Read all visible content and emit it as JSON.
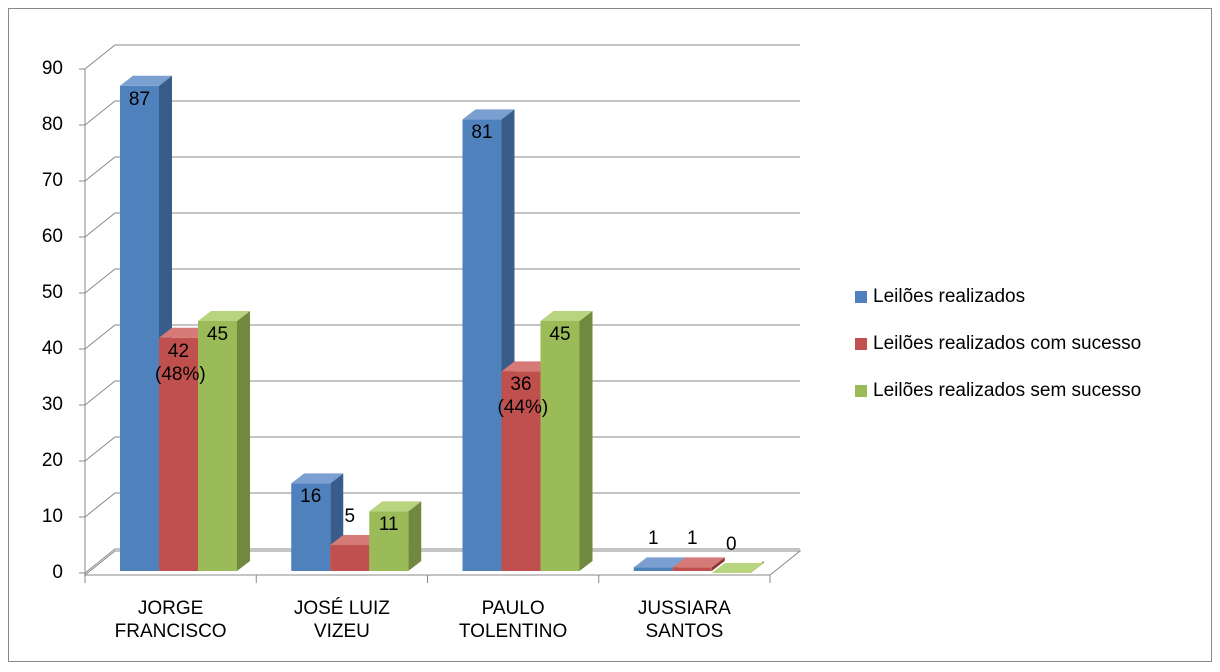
{
  "chart_data": {
    "type": "bar3d",
    "categories": [
      "JORGE FRANCISCO",
      "JOSÉ LUIZ VIZEU",
      "PAULO TOLENTINO",
      "JUSSIARA SANTOS"
    ],
    "series": [
      {
        "name": "Leilões realizados",
        "color": "#4f81bd",
        "side": "#385d8a",
        "top": "#7a9fd0",
        "values": [
          87,
          16,
          81,
          1
        ]
      },
      {
        "name": "Leilões realizados com sucesso",
        "color": "#c0504d",
        "side": "#8c3836",
        "top": "#d67a77",
        "values": [
          42,
          5,
          36,
          1
        ],
        "value_labels": [
          "42 (48%)",
          "5",
          "36 (44%)",
          "1"
        ]
      },
      {
        "name": "Leilões realizados sem sucesso",
        "color": "#9bbb59",
        "side": "#71893f",
        "top": "#b8d47f",
        "values": [
          45,
          11,
          45,
          0
        ]
      }
    ],
    "ylim": [
      0,
      90
    ],
    "yticks": [
      0,
      10,
      20,
      30,
      40,
      50,
      60,
      70,
      80,
      90
    ],
    "grid": true,
    "legend": "right"
  }
}
